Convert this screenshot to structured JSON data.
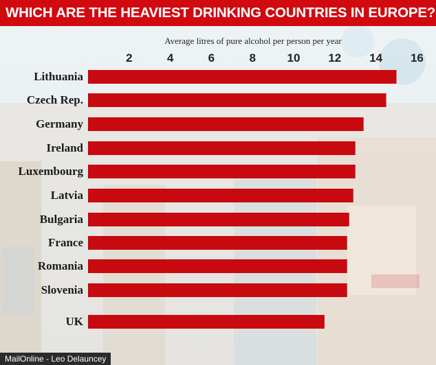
{
  "title": "WHICH ARE THE HEAVIEST DRINKING COUNTRIES IN EUROPE?",
  "credit": "MailOnline - Leo Delauncey",
  "colors": {
    "title_bg": "#d10a10",
    "bar": "#c8090f",
    "credit_bg": "#2b2b2b"
  },
  "chart_data": {
    "type": "bar",
    "orientation": "horizontal",
    "title": "WHICH ARE THE HEAVIEST DRINKING COUNTRIES IN EUROPE?",
    "xlabel": "Average litres of pure alcohol per person per year",
    "ylabel": "",
    "categories": [
      "Lithuania",
      "Czech Rep.",
      "Germany",
      "Ireland",
      "Luxembourg",
      "Latvia",
      "Bulgaria",
      "France",
      "Romania",
      "Slovenia",
      "UK"
    ],
    "values": [
      15.0,
      14.5,
      13.4,
      13.0,
      13.0,
      12.9,
      12.7,
      12.6,
      12.6,
      12.6,
      11.5
    ],
    "xticks": [
      2,
      4,
      6,
      8,
      10,
      12,
      14,
      16
    ],
    "xlim": [
      0,
      16
    ],
    "xaxis_position": "top",
    "grid": false,
    "legend": "none"
  }
}
